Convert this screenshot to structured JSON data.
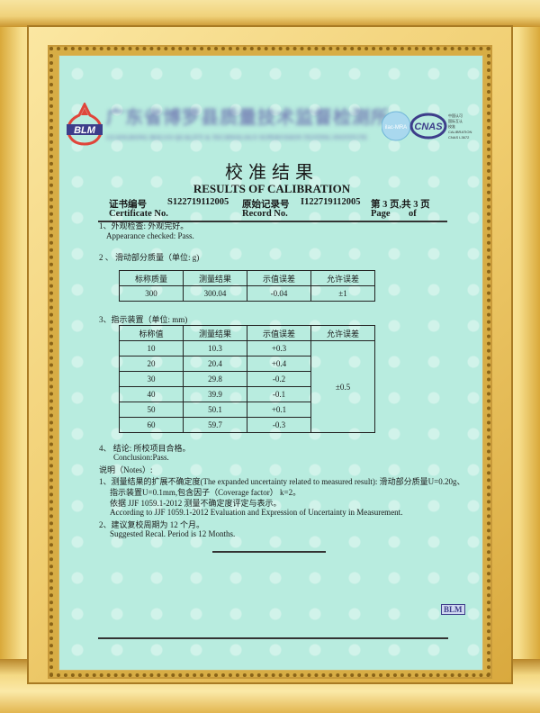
{
  "header": {
    "org_logo_text": "BLM",
    "org_name_cn": "广东省博罗县质量技术监督检测所",
    "org_name_en": "GUANGDONG BOLUO QUALITY & TECHNOLOGY SUPERVISION TESTING INSTITUTE",
    "accreditation": {
      "ilac": "ilac-MRA",
      "cnas": "CNAS",
      "lines": [
        "中国认可",
        "国际互认",
        "校准",
        "CALIBRATION",
        "CNAS L3672"
      ]
    }
  },
  "title_cn": "校准结果",
  "title_en": "RESULTS OF CALIBRATION",
  "cert": {
    "cert_no_label_cn": "证书编号",
    "cert_no": "S122719112005",
    "cert_no_label_en": "Certificate No.",
    "record_no_label_cn": "原始记录号",
    "record_no": "I122719112005",
    "record_no_label_en": "Record No.",
    "page_cn": "第  3  页,共  3 页",
    "page_label_en": "Page",
    "of_label_en": "of"
  },
  "item1": {
    "cn": "1、外观检查:  外观完好。",
    "en": "Appearance checked:    Pass."
  },
  "item2": {
    "title": "2 、 滑动部分质量（单位: g)",
    "headers": [
      "标称质量",
      "测量结果",
      "示值误差",
      "允许误差"
    ],
    "row": [
      "300",
      "300.04",
      "-0.04",
      "±1"
    ]
  },
  "item3": {
    "title": "3、指示装置（单位: mm)",
    "headers": [
      "标称值",
      "测量结果",
      "示值误差",
      "允许误差"
    ],
    "rows": [
      [
        "10",
        "10.3",
        "+0.3"
      ],
      [
        "20",
        "20.4",
        "+0.4"
      ],
      [
        "30",
        "29.8",
        "-0.2"
      ],
      [
        "40",
        "39.9",
        "-0.1"
      ],
      [
        "50",
        "50.1",
        "+0.1"
      ],
      [
        "60",
        "59.7",
        "-0.3"
      ]
    ],
    "tolerance": "±0.5"
  },
  "item4": {
    "cn": "4、  结论: 所校项目合格。",
    "en": "Conclusion:Pass."
  },
  "notes": {
    "title": "说明（Notes）:",
    "lines": [
      "1、测量结果的扩展不确定度(The expanded uncertainty related to measured result): 滑动部分质量U=0.20g、",
      "指示装置U=0.1mm,包含因子（Coverage factor） k=2。",
      "依据 JJF 1059.1-2012 测量不确定度评定与表示。",
      "According to JJF 1059.1-2012 Evaluation and Expression of Uncertainty in Measurement.",
      "2、建议复校周期为 12 个月。",
      "Suggested Recal. Period is 12 Months."
    ]
  },
  "footer": {
    "blm_mark": "BLM"
  },
  "colors": {
    "paper": "#b8ecdf",
    "frame_gold": "#e8c45c",
    "logo_blue": "#3d3d8a",
    "logo_red": "#e0453a"
  }
}
